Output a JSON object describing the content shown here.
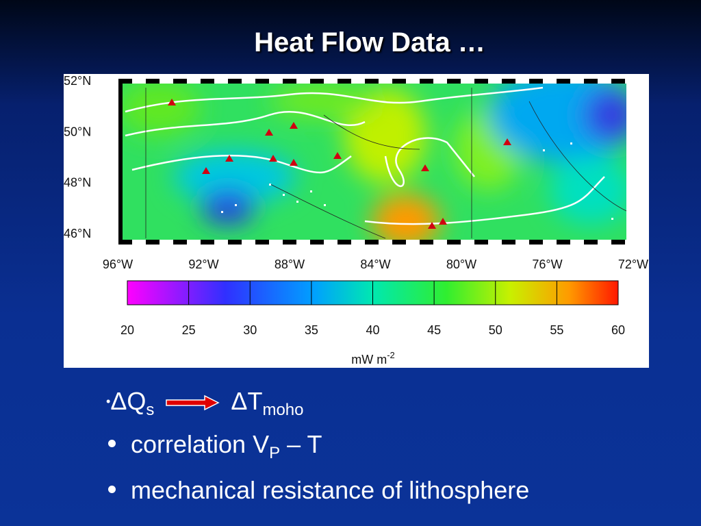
{
  "title": "Heat Flow Data …",
  "map": {
    "lat_labels": [
      "52°N",
      "50°N",
      "48°N",
      "46°N"
    ],
    "lon_labels": [
      "96°W",
      "92°W",
      "88°W",
      "84°W",
      "80°W",
      "76°W",
      "72°W"
    ]
  },
  "colorbar": {
    "range": [
      20,
      60
    ],
    "ticks": [
      20,
      25,
      30,
      35,
      40,
      45,
      50,
      55,
      60
    ],
    "unit": {
      "base": "mW m",
      "exponent": "-2"
    }
  },
  "bullets": [
    {
      "parts": [
        "Δ",
        "Q",
        "s",
        "Δ",
        "T",
        "moho"
      ]
    },
    {
      "parts": [
        "correlation V",
        "P",
        " – T"
      ]
    },
    {
      "parts": [
        "mechanical resistance of lithosphere"
      ]
    }
  ]
}
